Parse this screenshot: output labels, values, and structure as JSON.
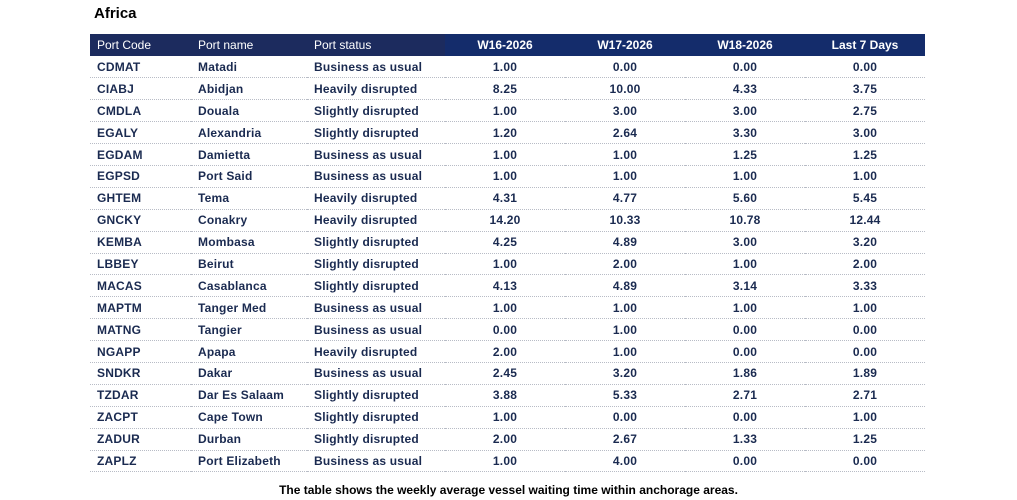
{
  "region_title": "Africa",
  "table": {
    "headers": [
      "Port Code",
      "Port name",
      "Port status",
      "W16-2026",
      "W17-2026",
      "W18-2026",
      "Last 7 Days"
    ],
    "rows": [
      [
        "CDMAT",
        "Matadi",
        "Business as usual",
        "1.00",
        "0.00",
        "0.00",
        "0.00"
      ],
      [
        "CIABJ",
        "Abidjan",
        "Heavily disrupted",
        "8.25",
        "10.00",
        "4.33",
        "3.75"
      ],
      [
        "CMDLA",
        "Douala",
        "Slightly disrupted",
        "1.00",
        "3.00",
        "3.00",
        "2.75"
      ],
      [
        "EGALY",
        "Alexandria",
        "Slightly disrupted",
        "1.20",
        "2.64",
        "3.30",
        "3.00"
      ],
      [
        "EGDAM",
        "Damietta",
        "Business as usual",
        "1.00",
        "1.00",
        "1.25",
        "1.25"
      ],
      [
        "EGPSD",
        "Port Said",
        "Business as usual",
        "1.00",
        "1.00",
        "1.00",
        "1.00"
      ],
      [
        "GHTEM",
        "Tema",
        "Heavily disrupted",
        "4.31",
        "4.77",
        "5.60",
        "5.45"
      ],
      [
        "GNCKY",
        "Conakry",
        "Heavily disrupted",
        "14.20",
        "10.33",
        "10.78",
        "12.44"
      ],
      [
        "KEMBA",
        "Mombasa",
        "Slightly disrupted",
        "4.25",
        "4.89",
        "3.00",
        "3.20"
      ],
      [
        "LBBEY",
        "Beirut",
        "Slightly disrupted",
        "1.00",
        "2.00",
        "1.00",
        "2.00"
      ],
      [
        "MACAS",
        "Casablanca",
        "Slightly disrupted",
        "4.13",
        "4.89",
        "3.14",
        "3.33"
      ],
      [
        "MAPTM",
        "Tanger Med",
        "Business as usual",
        "1.00",
        "1.00",
        "1.00",
        "1.00"
      ],
      [
        "MATNG",
        "Tangier",
        "Business as usual",
        "0.00",
        "1.00",
        "0.00",
        "0.00"
      ],
      [
        "NGAPP",
        "Apapa",
        "Heavily disrupted",
        "2.00",
        "1.00",
        "0.00",
        "0.00"
      ],
      [
        "SNDKR",
        "Dakar",
        "Business as usual",
        "2.45",
        "3.20",
        "1.86",
        "1.89"
      ],
      [
        "TZDAR",
        "Dar Es Salaam",
        "Slightly disrupted",
        "3.88",
        "5.33",
        "2.71",
        "2.71"
      ],
      [
        "ZACPT",
        "Cape Town",
        "Slightly disrupted",
        "1.00",
        "0.00",
        "0.00",
        "1.00"
      ],
      [
        "ZADUR",
        "Durban",
        "Slightly disrupted",
        "2.00",
        "2.67",
        "1.33",
        "1.25"
      ],
      [
        "ZAPLZ",
        "Port Elizabeth",
        "Business as usual",
        "1.00",
        "4.00",
        "0.00",
        "0.00"
      ]
    ]
  },
  "caption": "The table shows the weekly average vessel waiting time within anchorage areas.",
  "colors": {
    "header_dark": "#1c2b5e",
    "header_blue": "#142c6b",
    "cell_text": "#1a2a50"
  }
}
